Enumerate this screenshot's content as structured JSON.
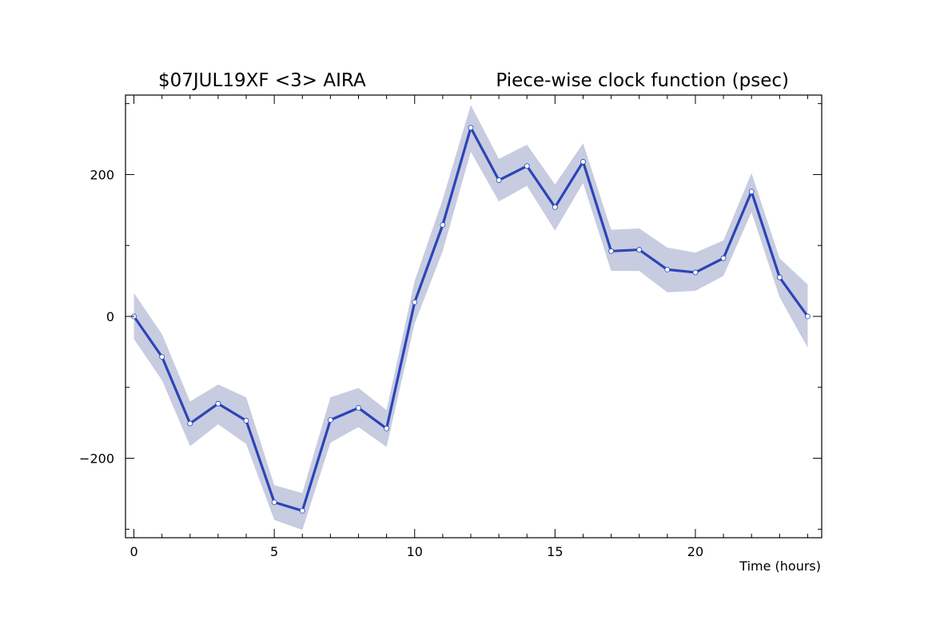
{
  "chart_data": {
    "type": "line",
    "title_left": "$07JUL19XF <3>  AIRA",
    "title_right": "Piece-wise clock function (psec)",
    "xlabel": "Time (hours)",
    "ylabel": "",
    "xlim": [
      -0.3,
      24.5
    ],
    "ylim": [
      -312,
      312
    ],
    "x_ticks": [
      0,
      5,
      10,
      15,
      20
    ],
    "y_ticks": [
      -200,
      0,
      200
    ],
    "grid": false,
    "colors": {
      "line": "#2b44b8",
      "band": "#c7cce0",
      "marker_fill": "#ffffff",
      "axis": "#000000"
    },
    "series": [
      {
        "x": [
          0,
          1,
          2,
          3,
          4,
          5,
          6,
          7,
          8,
          9,
          10,
          11,
          12,
          13,
          14,
          15,
          16,
          17,
          18,
          19,
          20,
          21,
          22,
          23,
          24
        ],
        "values": [
          0,
          -57,
          -151,
          -123,
          -147,
          -262,
          -274,
          -146,
          -129,
          -158,
          20,
          129,
          266,
          192,
          212,
          154,
          218,
          92,
          94,
          66,
          62,
          82,
          176,
          55,
          0
        ],
        "lower": [
          -32,
          -90,
          -183,
          -152,
          -180,
          -287,
          -301,
          -178,
          -156,
          -184,
          -10,
          92,
          232,
          162,
          184,
          121,
          188,
          64,
          64,
          34,
          36,
          57,
          147,
          27,
          -44
        ],
        "upper": [
          33,
          -25,
          -120,
          -96,
          -114,
          -238,
          -249,
          -114,
          -101,
          -132,
          50,
          165,
          298,
          222,
          242,
          186,
          244,
          122,
          124,
          97,
          90,
          107,
          202,
          82,
          45
        ]
      }
    ]
  }
}
